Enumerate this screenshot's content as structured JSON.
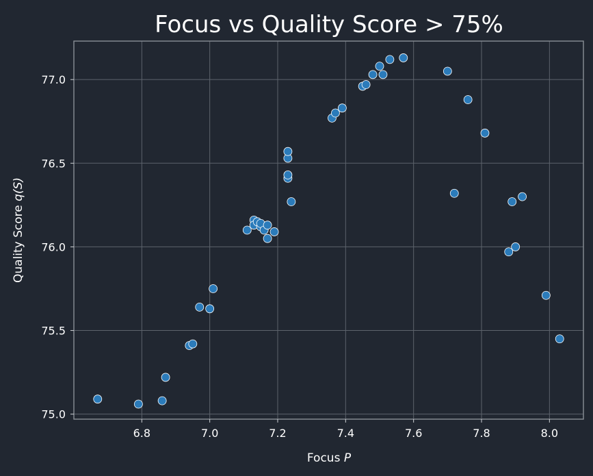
{
  "chart_data": {
    "type": "scatter",
    "title": "Focus vs Quality Score > 75%",
    "xlabel_main": "Focus ",
    "xlabel_var": "P",
    "ylabel_main": "Quality Score ",
    "ylabel_var": "q(S)",
    "xlim": [
      6.6,
      8.1
    ],
    "ylim": [
      74.97,
      77.23
    ],
    "xticks": [
      6.8,
      7.0,
      7.2,
      7.4,
      7.6,
      7.8,
      8.0
    ],
    "xtick_labels": [
      "6.8",
      "7.0",
      "7.2",
      "7.4",
      "7.6",
      "7.8",
      "8.0"
    ],
    "yticks": [
      75.0,
      75.5,
      76.0,
      76.5,
      77.0
    ],
    "ytick_labels": [
      "75.0",
      "75.5",
      "76.0",
      "76.5",
      "77.0"
    ],
    "grid": true,
    "colors": {
      "background": "#212731",
      "point": "#2b7bba",
      "point_edge": "#ffffff"
    },
    "points": [
      [
        6.67,
        75.09
      ],
      [
        6.79,
        75.06
      ],
      [
        6.86,
        75.08
      ],
      [
        6.87,
        75.22
      ],
      [
        6.94,
        75.41
      ],
      [
        6.95,
        75.42
      ],
      [
        6.97,
        75.64
      ],
      [
        7.0,
        75.63
      ],
      [
        7.01,
        75.75
      ],
      [
        7.11,
        76.1
      ],
      [
        7.13,
        76.16
      ],
      [
        7.13,
        76.13
      ],
      [
        7.14,
        76.15
      ],
      [
        7.15,
        76.12
      ],
      [
        7.15,
        76.14
      ],
      [
        7.16,
        76.1
      ],
      [
        7.17,
        76.13
      ],
      [
        7.17,
        76.05
      ],
      [
        7.19,
        76.09
      ],
      [
        7.23,
        76.41
      ],
      [
        7.23,
        76.43
      ],
      [
        7.23,
        76.53
      ],
      [
        7.23,
        76.57
      ],
      [
        7.24,
        76.27
      ],
      [
        7.36,
        76.77
      ],
      [
        7.37,
        76.8
      ],
      [
        7.39,
        76.83
      ],
      [
        7.45,
        76.96
      ],
      [
        7.46,
        76.97
      ],
      [
        7.48,
        77.03
      ],
      [
        7.5,
        77.08
      ],
      [
        7.51,
        77.03
      ],
      [
        7.53,
        77.12
      ],
      [
        7.57,
        77.13
      ],
      [
        7.7,
        77.05
      ],
      [
        7.72,
        76.32
      ],
      [
        7.76,
        76.88
      ],
      [
        7.81,
        76.68
      ],
      [
        7.88,
        75.97
      ],
      [
        7.89,
        76.27
      ],
      [
        7.9,
        76.0
      ],
      [
        7.92,
        76.3
      ],
      [
        7.99,
        75.71
      ],
      [
        8.03,
        75.45
      ]
    ]
  }
}
